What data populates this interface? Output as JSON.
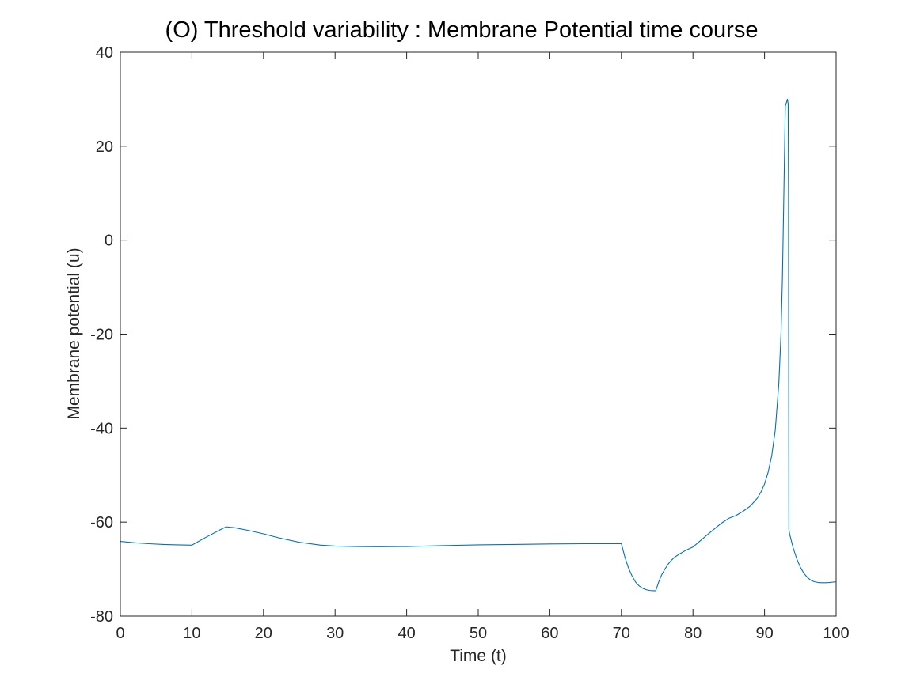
{
  "chart_data": {
    "type": "line",
    "title": "(O) Threshold variability : Membrane Potential time course",
    "xlabel": "Time (t)",
    "ylabel": "Membrane potential (u)",
    "xlim": [
      0,
      100
    ],
    "ylim": [
      -80,
      40
    ],
    "xticks": [
      "0",
      "10",
      "20",
      "30",
      "40",
      "50",
      "60",
      "70",
      "80",
      "90",
      "100"
    ],
    "yticks": [
      "-80",
      "-60",
      "-40",
      "-20",
      "0",
      "20",
      "40"
    ],
    "grid": false,
    "legend": "none",
    "series": [
      {
        "color": "#0072BD",
        "x": [
          0,
          2,
          4,
          6,
          8,
          10,
          12,
          14,
          14.8,
          16,
          18,
          20,
          22,
          25,
          28,
          30,
          33,
          36,
          40,
          45,
          50,
          55,
          60,
          65,
          70,
          70.5,
          71,
          71.5,
          72,
          72.5,
          73,
          73.5,
          74,
          74.5,
          74.8,
          75.2,
          75.6,
          76,
          76.5,
          77,
          77.5,
          78,
          79,
          80,
          82,
          84,
          85,
          86,
          87,
          88,
          89,
          89.5,
          90,
          90.5,
          91,
          91.5,
          92,
          92.3,
          92.5,
          92.7,
          92.9,
          93.1,
          93.2,
          93.3,
          93.35,
          93.4,
          93.5,
          94,
          94.5,
          95,
          95.5,
          96,
          96.5,
          97,
          97.5,
          98,
          98.5,
          99,
          100
        ],
        "y": [
          -64.1,
          -64.4,
          -64.6,
          -64.75,
          -64.85,
          -64.9,
          -63.2,
          -61.6,
          -61.0,
          -61.2,
          -61.8,
          -62.5,
          -63.3,
          -64.3,
          -64.9,
          -65.1,
          -65.2,
          -65.25,
          -65.2,
          -65.0,
          -64.85,
          -64.75,
          -64.65,
          -64.6,
          -64.6,
          -67.5,
          -69.8,
          -71.5,
          -72.8,
          -73.6,
          -74.1,
          -74.4,
          -74.55,
          -74.6,
          -74.6,
          -72.8,
          -71.3,
          -70.2,
          -69.0,
          -68.1,
          -67.4,
          -66.9,
          -66.0,
          -65.3,
          -62.7,
          -60.2,
          -59.2,
          -58.6,
          -57.7,
          -56.6,
          -54.9,
          -53.6,
          -51.9,
          -49.4,
          -45.9,
          -40.4,
          -30.4,
          -20.0,
          -8.0,
          10.0,
          28.5,
          29.5,
          30.0,
          29.0,
          10.0,
          -61.5,
          -62.5,
          -65.5,
          -67.8,
          -69.6,
          -70.9,
          -71.8,
          -72.4,
          -72.7,
          -72.85,
          -72.9,
          -72.9,
          -72.85,
          -72.7
        ]
      }
    ]
  }
}
